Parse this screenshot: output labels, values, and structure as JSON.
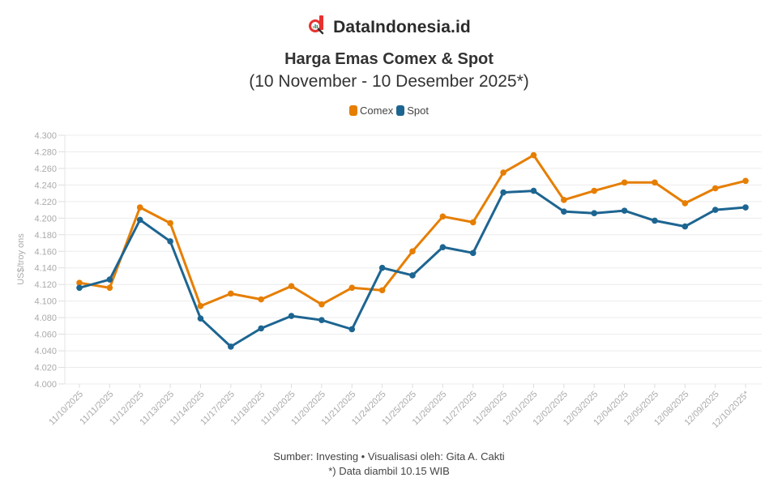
{
  "brand": {
    "name": "DataIndonesia.id",
    "logo_icon": "magnifier-d-logo-icon",
    "logo_color": "#e8312f"
  },
  "header": {
    "title": "Harga Emas Comex & Spot",
    "subtitle": "(10 November - 10 Desember 2025*)"
  },
  "legend": [
    {
      "label": "Comex",
      "color": "#e67e00"
    },
    {
      "label": "Spot",
      "color": "#1d6591"
    }
  ],
  "footer": {
    "source": "Sumber: Investing • Visualisasi oleh: Gita A. Cakti",
    "note": "*) Data diambil 10.15 WIB"
  },
  "chart_data": {
    "type": "line",
    "title": "Harga Emas Comex & Spot",
    "subtitle": "(10 November - 10 Desember 2025*)",
    "xlabel": "",
    "ylabel": "US$/troy ons",
    "ylim": [
      4000,
      4300
    ],
    "yticks": [
      "4.000",
      "4.020",
      "4.040",
      "4.060",
      "4.080",
      "4.100",
      "4.120",
      "4.140",
      "4.160",
      "4.180",
      "4.200",
      "4.220",
      "4.240",
      "4.260",
      "4.280",
      "4.300"
    ],
    "grid": true,
    "legend_position": "top",
    "categories": [
      "11/10/2025",
      "11/11/2025",
      "11/12/2025",
      "11/13/2025",
      "11/14/2025",
      "11/17/2025",
      "11/18/2025",
      "11/19/2025",
      "11/20/2025",
      "11/21/2025",
      "11/24/2025",
      "11/25/2025",
      "11/26/2025",
      "11/27/2025",
      "11/28/2025",
      "12/01/2025",
      "12/02/2025",
      "12/03/2025",
      "12/04/2025",
      "12/05/2025",
      "12/08/2025",
      "12/09/2025",
      "12/10/2025*"
    ],
    "series": [
      {
        "name": "Comex",
        "color": "#e67e00",
        "values": [
          4122,
          4116,
          4213,
          4194,
          4094,
          4109,
          4102,
          4118,
          4096,
          4116,
          4113,
          4160,
          4202,
          4195,
          4255,
          4276,
          4222,
          4233,
          4243,
          4243,
          4218,
          4236,
          4245
        ]
      },
      {
        "name": "Spot",
        "color": "#1d6591",
        "values": [
          4116,
          4126,
          4198,
          4172,
          4079,
          4045,
          4067,
          4082,
          4077,
          4066,
          4140,
          4131,
          4165,
          4158,
          4231,
          4233,
          4208,
          4206,
          4209,
          4197,
          4190,
          4210,
          4213
        ]
      }
    ]
  }
}
